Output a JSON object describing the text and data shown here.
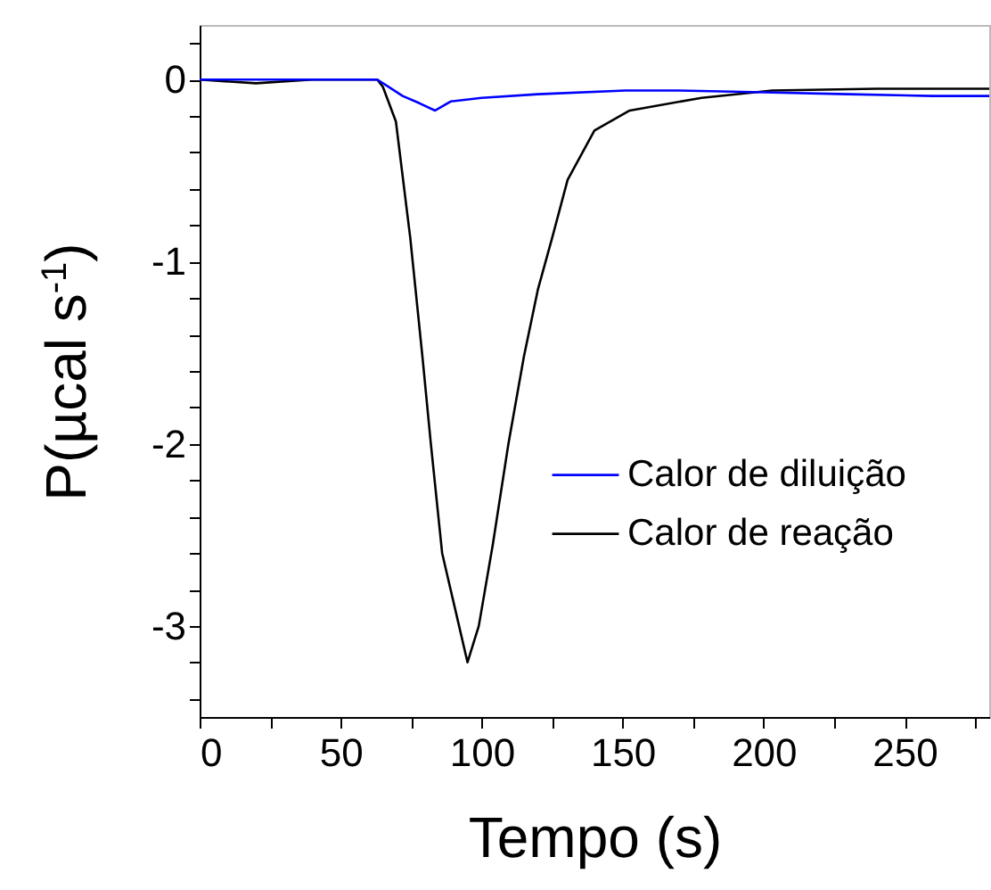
{
  "chart_data": {
    "type": "line",
    "xlabel": "Tempo (s)",
    "ylabel": "P(µcal s$^{-1}$)",
    "xlim": [
      0,
      280
    ],
    "ylim": [
      -3.5,
      0.3
    ],
    "xticks": [
      0,
      {
        "value": 25,
        "label": null
      },
      50,
      {
        "value": 75,
        "label": null
      },
      100,
      {
        "value": 125,
        "label": null
      },
      150,
      {
        "value": 175,
        "label": null
      },
      200,
      {
        "value": 225,
        "label": null
      },
      250,
      {
        "value": 275,
        "label": null
      }
    ],
    "yticks": [
      {
        "value": 0.2,
        "label": null
      },
      0,
      {
        "value": -0.2,
        "label": null
      },
      {
        "value": -0.4,
        "label": null
      },
      {
        "value": -0.6,
        "label": null
      },
      {
        "value": -0.8,
        "label": null
      },
      -1,
      {
        "value": -1.2,
        "label": null
      },
      {
        "value": -1.4,
        "label": null
      },
      {
        "value": -1.6,
        "label": null
      },
      {
        "value": -1.8,
        "label": null
      },
      -2,
      {
        "value": -2.2,
        "label": null
      },
      {
        "value": -2.4,
        "label": null
      },
      {
        "value": -2.6,
        "label": null
      },
      {
        "value": -2.8,
        "label": null
      },
      -3,
      {
        "value": -3.2,
        "label": null
      },
      {
        "value": -3.4,
        "label": null
      }
    ],
    "legend": "right",
    "grid": false,
    "series": [
      {
        "name": "Calor de diluição",
        "color": "#0000ff",
        "x": [
          0,
          63,
          67,
          72,
          78,
          83.5,
          89,
          100,
          120,
          151,
          170,
          200,
          230,
          260,
          280
        ],
        "values": [
          0,
          0,
          -0.04,
          -0.09,
          -0.13,
          -0.17,
          -0.12,
          -0.1,
          -0.08,
          -0.06,
          -0.06,
          -0.07,
          -0.08,
          -0.09,
          -0.09
        ]
      },
      {
        "name": "Calor de reação",
        "color": "#000000",
        "x": [
          0,
          20,
          40,
          63,
          65,
          69.6,
          74.7,
          79,
          82,
          86,
          92,
          95,
          99,
          104,
          109.5,
          115,
          120,
          125,
          130.5,
          140,
          152.5,
          178,
          203,
          240,
          280
        ],
        "values": [
          0,
          -0.02,
          0,
          0,
          -0.04,
          -0.23,
          -0.87,
          -1.52,
          -2.0,
          -2.6,
          -3.0,
          -3.2,
          -3.0,
          -2.55,
          -2.0,
          -1.52,
          -1.15,
          -0.87,
          -0.55,
          -0.28,
          -0.17,
          -0.1,
          -0.06,
          -0.05,
          -0.05
        ]
      }
    ]
  }
}
